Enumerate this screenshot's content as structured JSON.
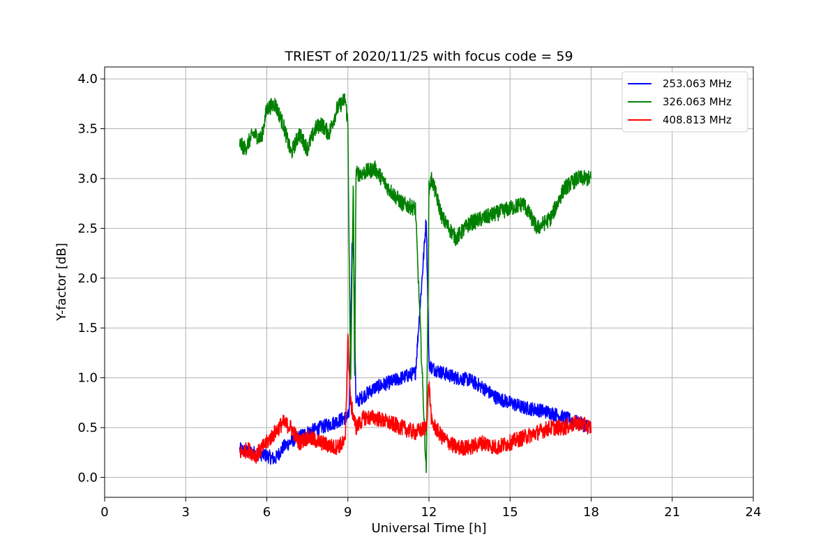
{
  "chart_data": {
    "type": "line",
    "title": "TRIEST of 2020/11/25 with focus code = 59",
    "xlabel": "Universal Time [h]",
    "ylabel": "Y-factor [dB]",
    "xlim": [
      0,
      24
    ],
    "ylim": [
      -0.2,
      4.12
    ],
    "xticks": [
      0,
      3,
      6,
      9,
      12,
      15,
      18,
      21,
      24
    ],
    "yticks": [
      0.0,
      0.5,
      1.0,
      1.5,
      2.0,
      2.5,
      3.0,
      3.5,
      4.0
    ],
    "xtick_labels": [
      "0",
      "3",
      "6",
      "9",
      "12",
      "15",
      "18",
      "21",
      "24"
    ],
    "ytick_labels": [
      "0.0",
      "0.5",
      "1.0",
      "1.5",
      "2.0",
      "2.5",
      "3.0",
      "3.5",
      "4.0"
    ],
    "grid": true,
    "legend_position": "top-right",
    "series": [
      {
        "name": "253.063 MHz",
        "color": "#0000ff",
        "x": [
          5.0,
          5.5,
          6.0,
          6.3,
          6.6,
          7.0,
          7.5,
          8.0,
          8.5,
          8.9,
          9.05,
          9.15,
          9.2,
          9.3,
          9.5,
          10.0,
          10.5,
          11.0,
          11.5,
          11.9,
          12.0,
          12.1,
          12.5,
          13.0,
          13.5,
          14.0,
          14.5,
          15.0,
          15.5,
          16.0,
          16.5,
          17.0,
          17.5,
          18.0
        ],
        "y": [
          0.28,
          0.25,
          0.22,
          0.18,
          0.3,
          0.38,
          0.45,
          0.5,
          0.55,
          0.6,
          0.62,
          2.3,
          2.4,
          0.75,
          0.8,
          0.9,
          0.95,
          1.0,
          1.05,
          2.6,
          1.15,
          1.1,
          1.05,
          1.0,
          0.98,
          0.9,
          0.8,
          0.75,
          0.7,
          0.68,
          0.65,
          0.6,
          0.55,
          0.5
        ]
      },
      {
        "name": "326.063 MHz",
        "color": "#008000",
        "x": [
          5.0,
          5.2,
          5.5,
          5.8,
          6.0,
          6.3,
          6.6,
          6.9,
          7.2,
          7.5,
          7.8,
          8.0,
          8.3,
          8.6,
          8.9,
          9.0,
          9.1,
          9.2,
          9.25,
          9.3,
          9.5,
          10.0,
          10.5,
          11.0,
          11.5,
          11.9,
          12.0,
          12.1,
          12.2,
          12.5,
          13.0,
          13.5,
          14.0,
          14.5,
          15.0,
          15.5,
          16.0,
          16.5,
          17.0,
          17.5,
          18.0
        ],
        "y": [
          3.35,
          3.3,
          3.45,
          3.4,
          3.7,
          3.75,
          3.55,
          3.25,
          3.45,
          3.3,
          3.5,
          3.55,
          3.45,
          3.7,
          3.8,
          3.55,
          0.9,
          3.0,
          0.85,
          3.05,
          3.05,
          3.1,
          2.9,
          2.75,
          2.7,
          0.05,
          2.9,
          3.0,
          2.9,
          2.6,
          2.4,
          2.55,
          2.6,
          2.65,
          2.7,
          2.75,
          2.5,
          2.6,
          2.9,
          3.0,
          3.0
        ]
      },
      {
        "name": "408.813 MHz",
        "color": "#ff0000",
        "x": [
          5.0,
          5.3,
          5.6,
          6.0,
          6.3,
          6.6,
          6.9,
          7.2,
          7.5,
          8.0,
          8.5,
          8.9,
          9.0,
          9.1,
          9.3,
          9.6,
          10.0,
          10.5,
          11.0,
          11.5,
          11.9,
          12.0,
          12.1,
          12.5,
          13.0,
          13.5,
          14.0,
          14.5,
          15.0,
          15.5,
          16.0,
          16.5,
          17.0,
          17.5,
          18.0
        ],
        "y": [
          0.25,
          0.28,
          0.22,
          0.35,
          0.45,
          0.55,
          0.5,
          0.35,
          0.4,
          0.35,
          0.3,
          0.35,
          1.4,
          0.75,
          0.5,
          0.6,
          0.6,
          0.55,
          0.5,
          0.45,
          0.5,
          0.95,
          0.55,
          0.4,
          0.3,
          0.3,
          0.35,
          0.3,
          0.35,
          0.4,
          0.45,
          0.5,
          0.5,
          0.55,
          0.5
        ]
      }
    ]
  }
}
